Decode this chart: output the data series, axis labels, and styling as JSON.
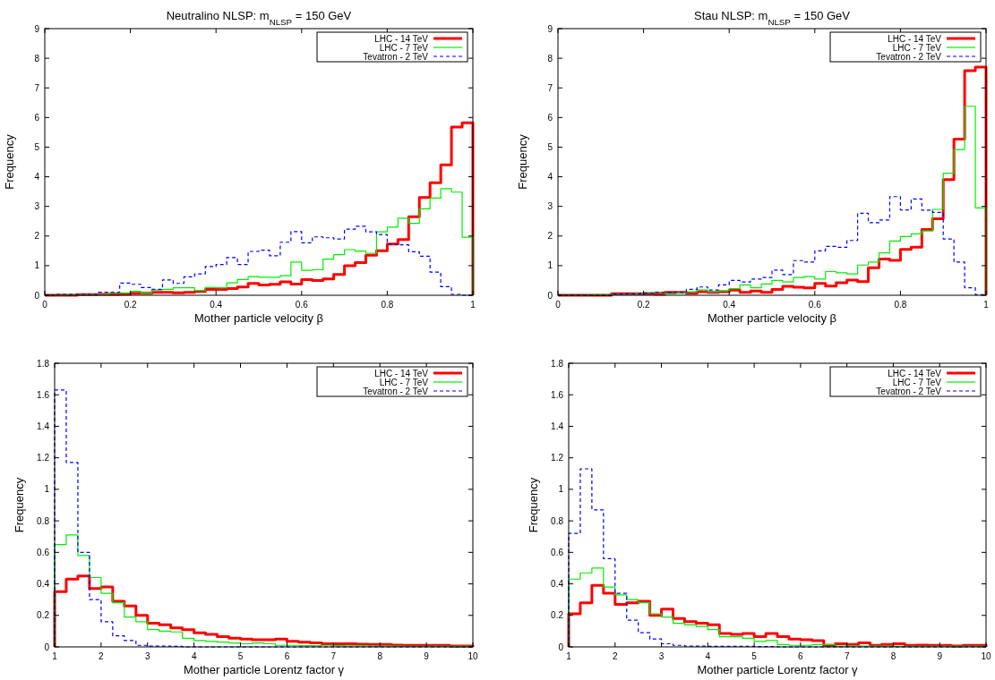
{
  "chart_data": [
    {
      "type": "histogram",
      "title": "Neutralino NLSP: m$_{NLSP}$ = 150 GeV",
      "xlabel": "Mother particle velocity β",
      "ylabel": "Frequency",
      "legend": "top right",
      "bins": [
        0,
        0.025,
        0.05,
        0.075,
        0.1,
        0.125,
        0.15,
        0.175,
        0.2,
        0.225,
        0.25,
        0.275,
        0.3,
        0.325,
        0.35,
        0.375,
        0.4,
        0.425,
        0.45,
        0.475,
        0.5,
        0.525,
        0.55,
        0.575,
        0.6,
        0.625,
        0.65,
        0.675,
        0.7,
        0.725,
        0.75,
        0.775,
        0.8,
        0.825,
        0.85,
        0.875,
        0.9,
        0.925,
        0.95,
        0.975,
        1
      ],
      "xlim": [
        0,
        1
      ],
      "ylim": [
        0,
        9
      ],
      "xticks": [
        0,
        0.2,
        0.4,
        0.6,
        0.8,
        1
      ],
      "yticks": [
        0,
        1,
        2,
        3,
        4,
        5,
        6,
        7,
        8,
        9
      ],
      "series": [
        {
          "name": "LHC - 14 TeV",
          "color": "#ff0000",
          "line_style": "solid",
          "values": [
            0,
            0,
            0,
            0.02,
            0.02,
            0.03,
            0.03,
            0.04,
            0.07,
            0.07,
            0.1,
            0.1,
            0.08,
            0.1,
            0.13,
            0.2,
            0.2,
            0.23,
            0.28,
            0.4,
            0.35,
            0.37,
            0.45,
            0.38,
            0.53,
            0.5,
            0.55,
            0.7,
            1.0,
            1.1,
            1.35,
            1.5,
            1.73,
            1.88,
            2.65,
            3.3,
            3.8,
            4.4,
            5.68,
            5.82
          ]
        },
        {
          "name": "LHC - 7 TeV",
          "color": "#00ee00",
          "line_style": "solid",
          "values": [
            0,
            0,
            0.02,
            0.02,
            0.02,
            0.02,
            0.08,
            0.08,
            0.13,
            0.07,
            0.18,
            0.2,
            0.25,
            0.25,
            0.16,
            0.26,
            0.25,
            0.42,
            0.53,
            0.63,
            0.61,
            0.61,
            0.66,
            1.12,
            0.84,
            0.86,
            1.22,
            1.37,
            1.54,
            1.49,
            1.42,
            2.14,
            2.3,
            2.6,
            2.43,
            2.92,
            3.28,
            3.6,
            3.48,
            1.96
          ]
        },
        {
          "name": "Tevatron - 2 TeV",
          "color": "#0000ff",
          "line_style": "dashed",
          "values": [
            0,
            0.03,
            0.03,
            0.03,
            0.03,
            0.1,
            0.1,
            0.41,
            0.37,
            0.26,
            0.2,
            0.52,
            0.4,
            0.62,
            0.72,
            0.97,
            1.04,
            1.27,
            1.04,
            1.48,
            1.52,
            1.33,
            1.79,
            2.15,
            1.77,
            1.97,
            1.94,
            1.9,
            2.23,
            2.33,
            2.14,
            2.05,
            1.72,
            1.7,
            1.47,
            1.32,
            0.78,
            0.29,
            0.03,
            0
          ]
        }
      ]
    },
    {
      "type": "histogram",
      "title": "Stau NLSP: m$_{NLSP}$ = 150 GeV",
      "xlabel": "Mother particle velocity β",
      "ylabel": "Frequency",
      "legend": "top right",
      "bins": [
        0,
        0.025,
        0.05,
        0.075,
        0.1,
        0.125,
        0.15,
        0.175,
        0.2,
        0.225,
        0.25,
        0.275,
        0.3,
        0.325,
        0.35,
        0.375,
        0.4,
        0.425,
        0.45,
        0.475,
        0.5,
        0.525,
        0.55,
        0.575,
        0.6,
        0.625,
        0.65,
        0.675,
        0.7,
        0.725,
        0.75,
        0.775,
        0.8,
        0.825,
        0.85,
        0.875,
        0.9,
        0.925,
        0.95,
        0.975,
        1
      ],
      "xlim": [
        0,
        1
      ],
      "ylim": [
        0,
        9
      ],
      "xticks": [
        0,
        0.2,
        0.4,
        0.6,
        0.8,
        1
      ],
      "yticks": [
        0,
        1,
        2,
        3,
        4,
        5,
        6,
        7,
        8,
        9
      ],
      "series": [
        {
          "name": "LHC - 14 TeV",
          "color": "#ff0000",
          "line_style": "solid",
          "values": [
            0,
            0,
            0,
            0,
            0,
            0.05,
            0.05,
            0.05,
            0.05,
            0.04,
            0.1,
            0.1,
            0.07,
            0.12,
            0.1,
            0.12,
            0.17,
            0.1,
            0.14,
            0.1,
            0.2,
            0.3,
            0.27,
            0.25,
            0.4,
            0.31,
            0.42,
            0.51,
            0.46,
            0.93,
            1.22,
            1.18,
            1.55,
            1.62,
            2.22,
            2.58,
            3.9,
            5.27,
            7.58,
            7.7
          ]
        },
        {
          "name": "LHC - 7 TeV",
          "color": "#00ee00",
          "line_style": "solid",
          "values": [
            0,
            0,
            0,
            0.02,
            0.02,
            0.03,
            0.03,
            0.05,
            0.09,
            0.1,
            0.05,
            0.08,
            0.12,
            0.18,
            0.12,
            0.15,
            0.22,
            0.35,
            0.25,
            0.38,
            0.5,
            0.45,
            0.6,
            0.63,
            0.55,
            0.8,
            0.76,
            0.72,
            1.02,
            1.12,
            1.43,
            1.83,
            1.98,
            2.07,
            2.17,
            2.9,
            4.12,
            4.92,
            6.38,
            2.95
          ]
        },
        {
          "name": "Tevatron - 2 TeV",
          "color": "#0000ff",
          "line_style": "dashed",
          "values": [
            0,
            0,
            0,
            0,
            0,
            0.04,
            0.05,
            0.05,
            0.07,
            0.1,
            0.1,
            0.09,
            0.2,
            0.28,
            0.18,
            0.35,
            0.5,
            0.45,
            0.55,
            0.6,
            0.85,
            0.7,
            1.17,
            1.12,
            1.5,
            1.65,
            1.62,
            1.85,
            2.77,
            2.45,
            2.54,
            3.33,
            2.88,
            3.25,
            2.87,
            2.8,
            1.9,
            1.12,
            0.25,
            0.02
          ]
        }
      ]
    },
    {
      "type": "histogram",
      "xlabel": "Mother particle Lorentz factor γ",
      "ylabel": "Frequency",
      "legend": "top right",
      "bins": [
        1,
        1.25,
        1.5,
        1.75,
        2,
        2.25,
        2.5,
        2.75,
        3,
        3.25,
        3.5,
        3.75,
        4,
        4.25,
        4.5,
        4.75,
        5,
        5.25,
        5.5,
        5.75,
        6,
        6.25,
        6.5,
        6.75,
        7,
        7.25,
        7.5,
        7.75,
        8,
        8.25,
        8.5,
        8.75,
        9,
        9.25,
        9.5,
        9.75,
        10
      ],
      "xlim": [
        1,
        10
      ],
      "ylim": [
        0,
        1.8
      ],
      "xticks": [
        1,
        2,
        3,
        4,
        5,
        6,
        7,
        8,
        9,
        10
      ],
      "yticks": [
        0,
        0.2,
        0.4,
        0.6,
        0.8,
        1,
        1.2,
        1.4,
        1.6,
        1.8
      ],
      "series": [
        {
          "name": "LHC - 14 TeV",
          "color": "#ff0000",
          "line_style": "solid",
          "values": [
            0.35,
            0.43,
            0.45,
            0.37,
            0.38,
            0.29,
            0.26,
            0.2,
            0.15,
            0.14,
            0.12,
            0.11,
            0.09,
            0.08,
            0.065,
            0.055,
            0.05,
            0.045,
            0.045,
            0.05,
            0.035,
            0.03,
            0.025,
            0.02,
            0.02,
            0.02,
            0.017,
            0.015,
            0.015,
            0.012,
            0.01,
            0.01,
            0.01,
            0.01,
            0.005,
            0.005
          ]
        },
        {
          "name": "LHC - 7 TeV",
          "color": "#00ee00",
          "line_style": "solid",
          "values": [
            0.65,
            0.71,
            0.58,
            0.44,
            0.34,
            0.28,
            0.19,
            0.16,
            0.11,
            0.1,
            0.095,
            0.055,
            0.04,
            0.035,
            0.03,
            0.025,
            0.02,
            0.025,
            0.02,
            0.01,
            0.01,
            0.008,
            0.008,
            0.01,
            0.008,
            0.006,
            0.006,
            0.005,
            0.005,
            0.005,
            0.004,
            0.004,
            0.004,
            0.004,
            0.004,
            0.004
          ]
        },
        {
          "name": "Tevatron - 2 TeV",
          "color": "#0000ff",
          "line_style": "dashed",
          "values": [
            1.63,
            1.17,
            0.6,
            0.3,
            0.16,
            0.07,
            0.04,
            0.01,
            0.005,
            0.005,
            0.003,
            0,
            0,
            0,
            0,
            0,
            0,
            0,
            0,
            0,
            0,
            0,
            0,
            0,
            0,
            0,
            0,
            0,
            0,
            0,
            0,
            0,
            0,
            0,
            0,
            0
          ]
        }
      ]
    },
    {
      "type": "histogram",
      "xlabel": "Mother particle Lorentz factor γ",
      "ylabel": "Frequency",
      "legend": "top right",
      "bins": [
        1,
        1.25,
        1.5,
        1.75,
        2,
        2.25,
        2.5,
        2.75,
        3,
        3.25,
        3.5,
        3.75,
        4,
        4.25,
        4.5,
        4.75,
        5,
        5.25,
        5.5,
        5.75,
        6,
        6.25,
        6.5,
        6.75,
        7,
        7.25,
        7.5,
        7.75,
        8,
        8.25,
        8.5,
        8.75,
        9,
        9.25,
        9.5,
        9.75,
        10
      ],
      "xlim": [
        1,
        10
      ],
      "ylim": [
        0,
        1.8
      ],
      "xticks": [
        1,
        2,
        3,
        4,
        5,
        6,
        7,
        8,
        9,
        10
      ],
      "yticks": [
        0,
        0.2,
        0.4,
        0.6,
        0.8,
        1,
        1.2,
        1.4,
        1.6,
        1.8
      ],
      "series": [
        {
          "name": "LHC - 14 TeV",
          "color": "#ff0000",
          "line_style": "solid",
          "values": [
            0.21,
            0.28,
            0.39,
            0.34,
            0.27,
            0.28,
            0.29,
            0.2,
            0.24,
            0.18,
            0.16,
            0.15,
            0.14,
            0.085,
            0.08,
            0.085,
            0.065,
            0.085,
            0.065,
            0.05,
            0.045,
            0.04,
            0.01,
            0.02,
            0.015,
            0.025,
            0.01,
            0.015,
            0.02,
            0.01,
            0.012,
            0.01,
            0.01,
            0.005,
            0.01,
            0.01
          ]
        },
        {
          "name": "LHC - 7 TeV",
          "color": "#00ee00",
          "line_style": "solid",
          "values": [
            0.43,
            0.47,
            0.5,
            0.38,
            0.33,
            0.3,
            0.28,
            0.21,
            0.19,
            0.15,
            0.14,
            0.13,
            0.11,
            0.065,
            0.065,
            0.055,
            0.035,
            0.04,
            0.015,
            0.01,
            0.01,
            0.015,
            0.015,
            0.005,
            0.005,
            0.005,
            0.005,
            0.004,
            0.004,
            0.004,
            0.004,
            0.004,
            0.003,
            0.003,
            0.003,
            0.003
          ]
        },
        {
          "name": "Tevatron - 2 TeV",
          "color": "#0000ff",
          "line_style": "dashed",
          "values": [
            0.72,
            1.13,
            0.87,
            0.56,
            0.34,
            0.17,
            0.09,
            0.05,
            0.02,
            0.01,
            0.005,
            0.005,
            0.003,
            0.003,
            0.003,
            0.003,
            0.002,
            0.002,
            0,
            0,
            0,
            0,
            0,
            0,
            0,
            0,
            0,
            0,
            0,
            0,
            0,
            0,
            0,
            0,
            0,
            0
          ]
        }
      ]
    }
  ]
}
